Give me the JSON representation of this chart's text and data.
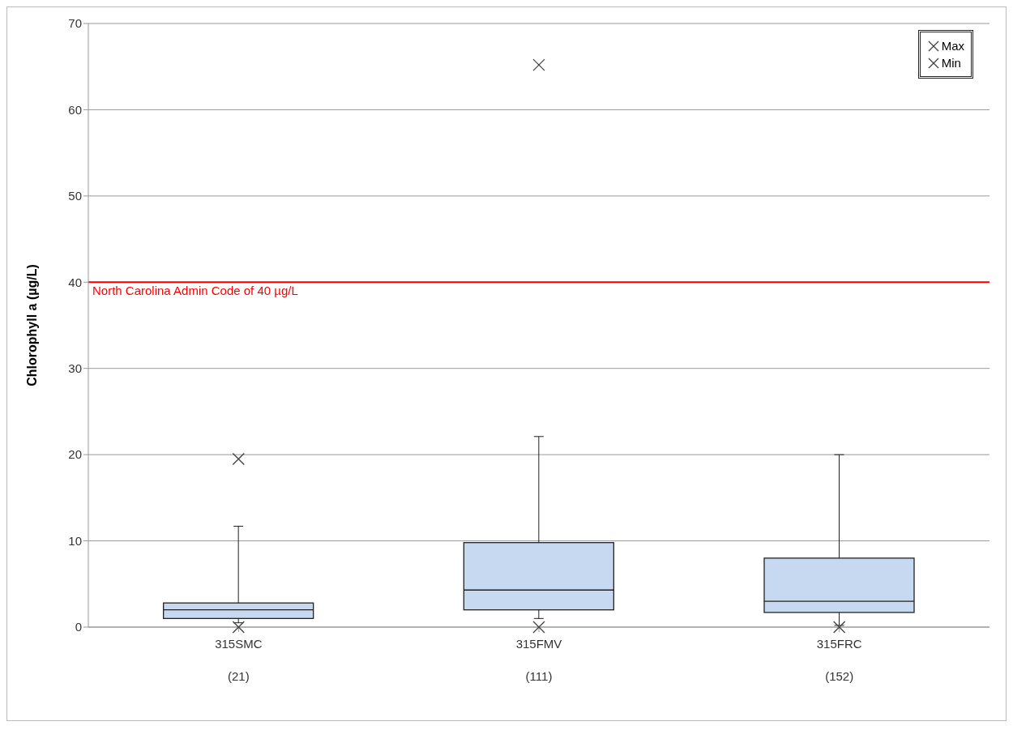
{
  "chart_data": {
    "type": "box",
    "ylabel": "Chlorophyll a (µg/L)",
    "categories": [
      "315SMC\n(21)",
      "315FMV\n(111)",
      "315FRC\n(152)"
    ],
    "ylim": [
      0,
      70
    ],
    "yticks": [
      0,
      10,
      20,
      30,
      40,
      50,
      60,
      70
    ],
    "grid": "y",
    "legend": "top right",
    "marker": "cross",
    "series": [
      {
        "color": "#c6d9f0",
        "boxes": [
          {
            "low": 0.5,
            "q1": 1.0,
            "median": 2.0,
            "q3": 2.8,
            "high": 11.7
          },
          {
            "low": 1.0,
            "q1": 2.0,
            "median": 4.3,
            "q3": 9.8,
            "high": 22.1
          },
          {
            "low": 0.2,
            "q1": 1.7,
            "median": 3.0,
            "q3": 8.0,
            "high": 20.0
          }
        ]
      },
      {
        "type": "scatter",
        "name": "Max",
        "color": "#404040",
        "x": [
          "315SMC\n(21)",
          "315FMV\n(111)",
          "315FRC\n(152)"
        ],
        "values": [
          19.5,
          65.2,
          null
        ]
      },
      {
        "type": "scatter",
        "name": "Min",
        "color": "#404040",
        "x": [
          "315SMC\n(21)",
          "315FMV\n(111)",
          "315FRC\n(152)"
        ],
        "values": [
          0,
          0,
          0
        ]
      }
    ],
    "ref_lines": [
      {
        "axis": "y",
        "value": 40,
        "label": "North Carolina Admin Code of 40 µg/L",
        "color": "#ff0000"
      }
    ]
  }
}
